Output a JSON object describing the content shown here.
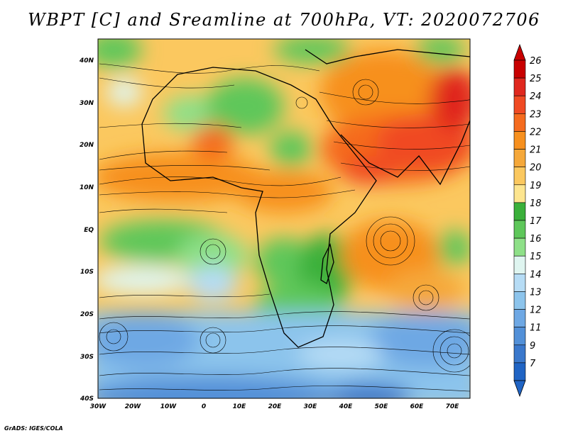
{
  "title": "WBPT [C] and Sreamline at 700hPa, VT: 2020072706",
  "credit": "GrADS: IGES/COLA",
  "axes": {
    "lon_labels": [
      "30W",
      "20W",
      "10W",
      "0",
      "10E",
      "20E",
      "30E",
      "40E",
      "50E",
      "60E",
      "70E"
    ],
    "lat_labels": [
      "40N",
      "30N",
      "20N",
      "10N",
      "EQ",
      "10S",
      "20S",
      "30S",
      "40S"
    ]
  },
  "colorbar": {
    "labels": [
      "26",
      "25",
      "24",
      "23",
      "22",
      "21",
      "20",
      "19",
      "18",
      "17",
      "16",
      "15",
      "14",
      "13",
      "12",
      "11",
      "9",
      "7"
    ],
    "colors": [
      "#c80000",
      "#e0281e",
      "#f04a23",
      "#f56b1e",
      "#f7901e",
      "#f5a83a",
      "#fbc85f",
      "#fde58f",
      "#3ab03a",
      "#5ec75a",
      "#8ee088",
      "#dff5f0",
      "#b6dcf5",
      "#8cc4ec",
      "#6ea8e4",
      "#5290d8",
      "#3a78cc",
      "#2064c4"
    ]
  }
}
